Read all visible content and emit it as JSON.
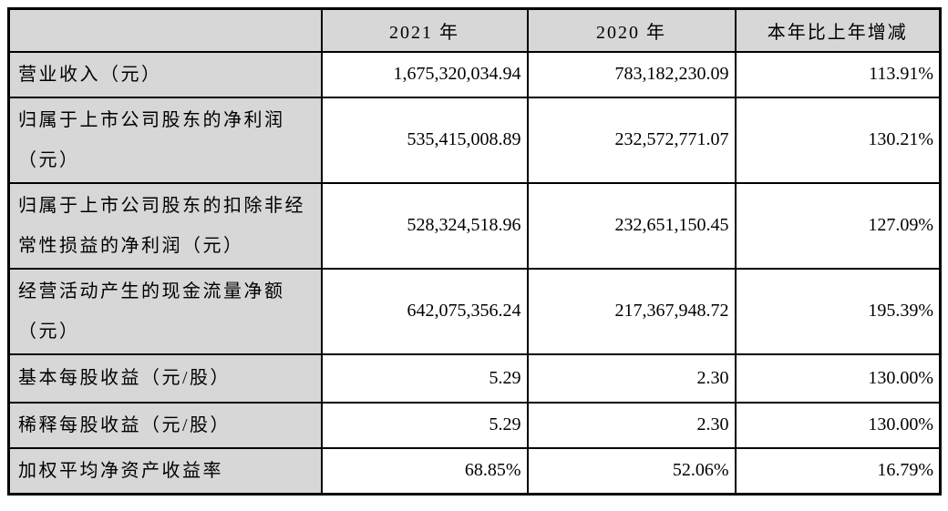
{
  "table": {
    "header": {
      "metric": "",
      "year_2021": "2021 年",
      "year_2020": "2020 年",
      "change": "本年比上年增减"
    },
    "rows": [
      {
        "label": "营业收入（元）",
        "y2021": "1,675,320,034.94",
        "y2020": "783,182,230.09",
        "change": "113.91%"
      },
      {
        "label": "归属于上市公司股东的净利润（元）",
        "y2021": "535,415,008.89",
        "y2020": "232,572,771.07",
        "change": "130.21%"
      },
      {
        "label": "归属于上市公司股东的扣除非经常性损益的净利润（元）",
        "y2021": "528,324,518.96",
        "y2020": "232,651,150.45",
        "change": "127.09%"
      },
      {
        "label": "经营活动产生的现金流量净额（元）",
        "y2021": "642,075,356.24",
        "y2020": "217,367,948.72",
        "change": "195.39%"
      },
      {
        "label": "基本每股收益（元/股）",
        "y2021": "5.29",
        "y2020": "2.30",
        "change": "130.00%"
      },
      {
        "label": "稀释每股收益（元/股）",
        "y2021": "5.29",
        "y2020": "2.30",
        "change": "130.00%"
      },
      {
        "label": "加权平均净资产收益率",
        "y2021": "68.85%",
        "y2020": "52.06%",
        "change": "16.79%"
      }
    ]
  },
  "colors": {
    "shaded_cell_bg": "#d7d7d7",
    "border": "#000000",
    "text": "#000000"
  }
}
